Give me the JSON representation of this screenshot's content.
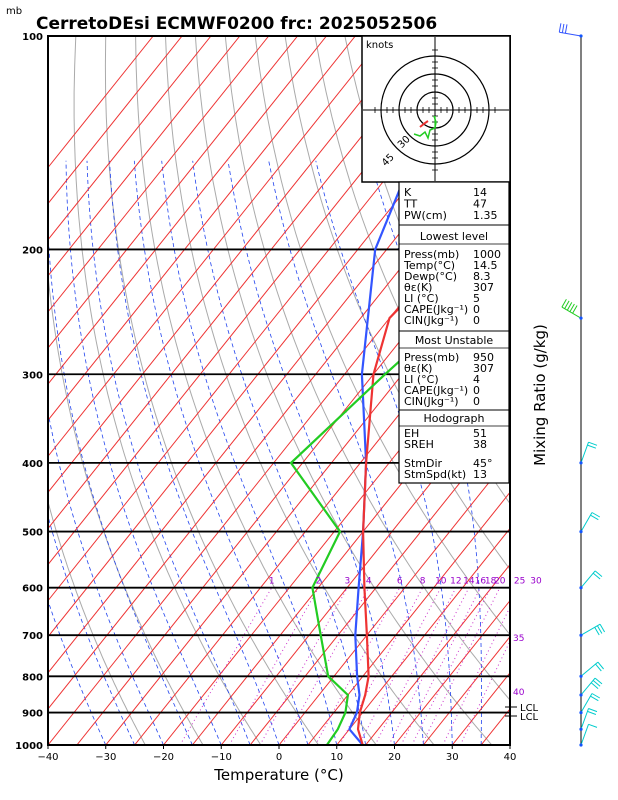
{
  "header": {
    "unit_mb": "mb",
    "title": "CerretoDEsi ECMWF0200  frc: 2025052506"
  },
  "axes": {
    "xlabel": "Temperature (°C)",
    "right_label": "Mixing Ratio (g/kg)",
    "pressure_ticks": [
      "100",
      "200",
      "300",
      "400",
      "500",
      "600",
      "700",
      "800",
      "900",
      "1000"
    ],
    "temp_ticks": [
      "−40",
      "−30",
      "−20",
      "−10",
      "0",
      "10",
      "20",
      "30",
      "40"
    ]
  },
  "mixing_ratio_labels": [
    "1",
    "2",
    "3",
    "4",
    "6",
    "8",
    "10",
    "12",
    "14",
    "16",
    "18",
    "20",
    "25",
    "30"
  ],
  "isotherm_edge_labels": [
    "30",
    "35",
    "40"
  ],
  "lcl_labels": [
    "LCL",
    "LCL"
  ],
  "hodograph": {
    "unit": "knots",
    "ring_labels": [
      "30",
      "45"
    ]
  },
  "indices": {
    "block1": [
      [
        "K",
        "14"
      ],
      [
        "TT",
        "47"
      ],
      [
        "PW(cm)",
        "1.35"
      ]
    ],
    "lowest_title": "Lowest level",
    "lowest": [
      [
        "Press(mb)",
        "1000"
      ],
      [
        "Temp(°C)",
        "14.5"
      ],
      [
        "Dewp(°C)",
        "8.3"
      ],
      [
        "θε(K)",
        "307"
      ],
      [
        "LI (°C)",
        "5"
      ],
      [
        "CAPE(Jkg⁻¹)",
        "0"
      ],
      [
        "CIN(Jkg⁻¹)",
        "0"
      ]
    ],
    "unstable_title": "Most Unstable",
    "unstable": [
      [
        "Press(mb)",
        "950"
      ],
      [
        "θε(K)",
        "307"
      ],
      [
        "LI (°C)",
        "4"
      ],
      [
        "CAPE(Jkg⁻¹)",
        "0"
      ],
      [
        "CIN(Jkg⁻¹)",
        "0"
      ]
    ],
    "hodo_title": "Hodograph",
    "hodo": [
      [
        "EH",
        "51"
      ],
      [
        "SREH",
        "38"
      ],
      [
        "StmDir",
        "45°"
      ],
      [
        "StmSpd(kt)",
        "13"
      ]
    ]
  },
  "colors": {
    "temperature": "#ee3333",
    "dewpoint": "#22cc22",
    "parcel": "#3355ff",
    "isotherm": "#ee3333",
    "dry_adiabat": "#aaaaaa",
    "moist_adiabat": "#2244ee",
    "mixing_ratio": "#cc33cc",
    "wind": "#00cccc"
  },
  "chart_data": {
    "type": "line",
    "title": "CerretoDEsi ECMWF0200  frc: 2025052506",
    "xlabel": "Temperature (°C)",
    "ylabel": "mb",
    "xlim": [
      -40,
      40
    ],
    "ylim": [
      1000,
      100
    ],
    "y_scale": "log",
    "series": [
      {
        "kind": "temperature",
        "points": [
          [
            1000,
            14.5
          ],
          [
            950,
            11.5
          ],
          [
            900,
            9.5
          ],
          [
            850,
            8
          ],
          [
            800,
            6
          ],
          [
            700,
            0
          ],
          [
            600,
            -7
          ],
          [
            500,
            -15
          ],
          [
            400,
            -24
          ],
          [
            300,
            -35
          ],
          [
            250,
            -40
          ],
          [
            200,
            -38
          ],
          [
            150,
            -22
          ],
          [
            100,
            -2
          ]
        ]
      },
      {
        "kind": "dewpoint",
        "points": [
          [
            1000,
            8.3
          ],
          [
            950,
            8
          ],
          [
            900,
            7
          ],
          [
            850,
            5
          ],
          [
            800,
            -1
          ],
          [
            700,
            -8
          ],
          [
            600,
            -16
          ],
          [
            500,
            -19
          ],
          [
            400,
            -37
          ],
          [
            300,
            -33
          ],
          [
            250,
            -30
          ],
          [
            200,
            -28
          ],
          [
            150,
            -26
          ],
          [
            100,
            -25
          ]
        ]
      },
      {
        "kind": "parcel",
        "points": [
          [
            1000,
            14.5
          ],
          [
            950,
            10
          ],
          [
            900,
            9
          ],
          [
            850,
            7
          ],
          [
            800,
            4
          ],
          [
            700,
            -2
          ],
          [
            600,
            -8
          ],
          [
            500,
            -15
          ],
          [
            400,
            -24
          ],
          [
            300,
            -37
          ],
          [
            200,
            -52
          ],
          [
            150,
            -58
          ]
        ]
      }
    ],
    "wind_barbs": [
      {
        "p": 1000,
        "dir": 20,
        "spd": 5
      },
      {
        "p": 950,
        "dir": 20,
        "spd": 15
      },
      {
        "p": 900,
        "dir": 30,
        "spd": 20
      },
      {
        "p": 850,
        "dir": 40,
        "spd": 25
      },
      {
        "p": 800,
        "dir": 50,
        "spd": 20
      },
      {
        "p": 700,
        "dir": 60,
        "spd": 25
      },
      {
        "p": 600,
        "dir": 40,
        "spd": 15
      },
      {
        "p": 500,
        "dir": 30,
        "spd": 20
      },
      {
        "p": 400,
        "dir": 20,
        "spd": 15
      },
      {
        "p": 250,
        "dir": 300,
        "spd": 50
      },
      {
        "p": 100,
        "dir": 280,
        "spd": 30
      }
    ]
  }
}
